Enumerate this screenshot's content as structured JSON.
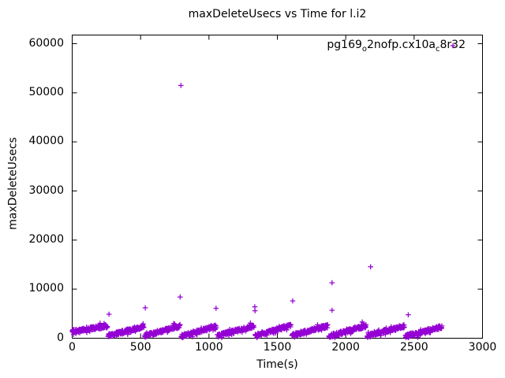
{
  "page": {
    "background_color": "#ffffff",
    "text_color": "#000000"
  },
  "chart_data": {
    "type": "scatter",
    "title": "maxDeleteUsecs vs Time for l.i2",
    "xlabel": "Time(s)",
    "ylabel": "maxDeleteUsecs",
    "xlim": [
      0,
      3000
    ],
    "ylim": [
      0,
      60000
    ],
    "xticks": [
      0,
      500,
      1000,
      1500,
      2000,
      2500,
      3000
    ],
    "yticks": [
      0,
      10000,
      20000,
      30000,
      40000,
      50000,
      60000
    ],
    "grid": false,
    "tics_mirrored": true,
    "legend": {
      "position": "top-right-inside",
      "entries": [
        {
          "label": "pg169_o2nofp.cx10a_c8r32",
          "label_parts": {
            "p1": "pg169",
            "sub1": "o",
            "p2": "2nofp.cx10a",
            "sub2": "c",
            "p3": "8r32"
          },
          "marker": "plus",
          "color": "#9400D3"
        }
      ]
    },
    "series": [
      {
        "name": "pg169_o2nofp.cx10a_c8r32",
        "color": "#9400D3",
        "marker": "plus",
        "marker_half_size_px": 3.3,
        "representation": "sawtooth_band_summary",
        "point_interval_s": 2.1,
        "noise_spread": 700,
        "seed": 20240917,
        "band_segments": [
          {
            "t_start": 0,
            "t_end": 258,
            "v_start": 1400,
            "v_end": 2500
          },
          {
            "t_start": 263,
            "t_end": 523,
            "v_start": 500,
            "v_end": 2400
          },
          {
            "t_start": 530,
            "t_end": 788,
            "v_start": 500,
            "v_end": 2500
          },
          {
            "t_start": 797,
            "t_end": 1053,
            "v_start": 420,
            "v_end": 2400
          },
          {
            "t_start": 1062,
            "t_end": 1328,
            "v_start": 500,
            "v_end": 2500
          },
          {
            "t_start": 1338,
            "t_end": 1598,
            "v_start": 500,
            "v_end": 2600
          },
          {
            "t_start": 1607,
            "t_end": 1868,
            "v_start": 600,
            "v_end": 2500
          },
          {
            "t_start": 1877,
            "t_end": 2148,
            "v_start": 420,
            "v_end": 2500
          },
          {
            "t_start": 2156,
            "t_end": 2428,
            "v_start": 500,
            "v_end": 2500
          },
          {
            "t_start": 2437,
            "t_end": 2703,
            "v_start": 420,
            "v_end": 2300
          }
        ],
        "outliers": [
          [
            269,
            4900
          ],
          [
            534,
            6200
          ],
          [
            789,
            8400
          ],
          [
            795,
            51500
          ],
          [
            1052,
            6100
          ],
          [
            1335,
            6400
          ],
          [
            1337,
            5600
          ],
          [
            1612,
            7600
          ],
          [
            1900,
            11300
          ],
          [
            1900,
            5700
          ],
          [
            2182,
            14550
          ],
          [
            2457,
            4760
          ]
        ]
      }
    ]
  }
}
